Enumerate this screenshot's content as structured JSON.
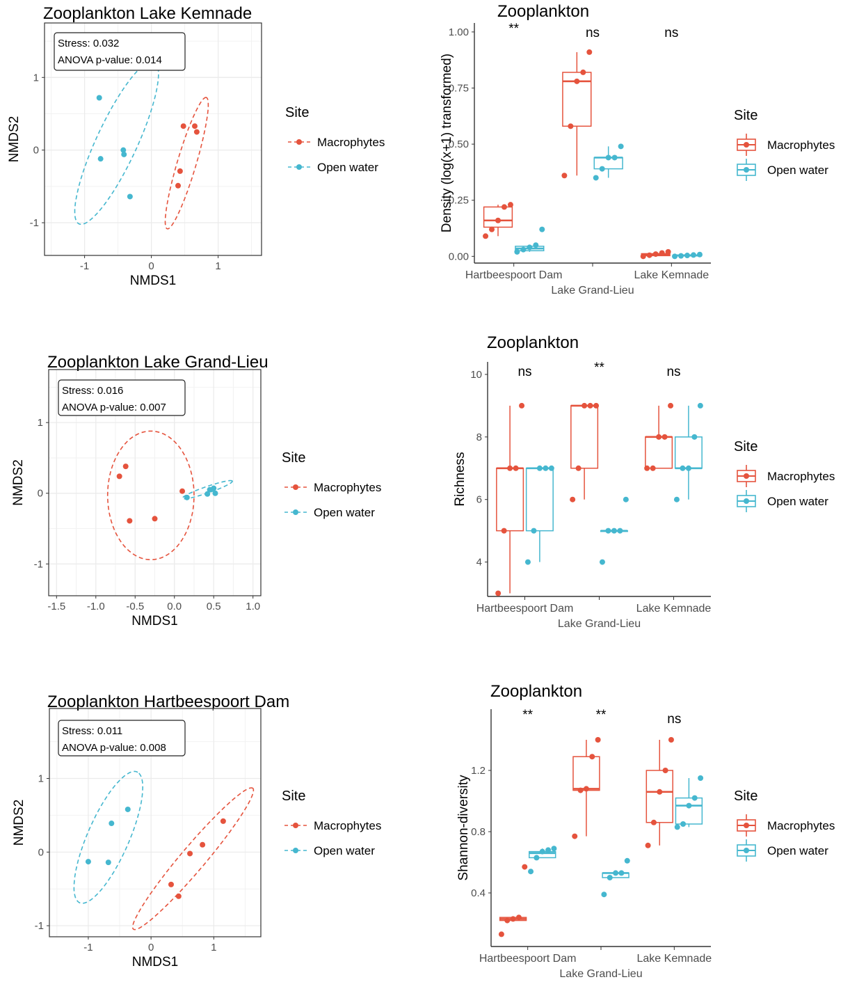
{
  "colors": {
    "macrophytes": "#e5533d",
    "open_water": "#45b7cf",
    "grid": "#ebebeb",
    "axis": "#333333"
  },
  "chart_data": [
    {
      "type": "scatter",
      "title": "Zooplankton Lake Kemnade",
      "xlabel": "NMDS1",
      "ylabel": "NMDS2",
      "xlim": [
        -1.6,
        1.65
      ],
      "ylim": [
        -1.45,
        1.75
      ],
      "xticks": [
        -1,
        0,
        1
      ],
      "yticks": [
        -1,
        0,
        1
      ],
      "stress_label": "Stress:  0.032",
      "anova_label": "ANOVA p-value: 0.014",
      "legend_title": "Site",
      "legend_position": "right",
      "series": [
        {
          "name": "Macrophytes",
          "points": [
            [
              0.48,
              0.33
            ],
            [
              0.65,
              0.33
            ],
            [
              0.68,
              0.25
            ],
            [
              0.43,
              -0.29
            ],
            [
              0.4,
              -0.49
            ]
          ],
          "ellipse": {
            "cx": 0.53,
            "cy": -0.18,
            "rx": 0.95,
            "ry": 0.14,
            "angle": 72
          }
        },
        {
          "name": "Open water",
          "points": [
            [
              -0.78,
              0.72
            ],
            [
              -0.76,
              -0.12
            ],
            [
              -0.42,
              0.0
            ],
            [
              -0.41,
              -0.06
            ],
            [
              -0.32,
              -0.64
            ]
          ],
          "ellipse": {
            "cx": -0.52,
            "cy": 0.1,
            "rx": 1.25,
            "ry": 0.3,
            "angle": 63
          }
        }
      ]
    },
    {
      "type": "box",
      "title": "Zooplankton",
      "xlabel": "Lake Grand-Lieu",
      "ylabel": "Density (log(x+1) transformed)",
      "ylim": [
        -0.03,
        1.04
      ],
      "yticks": [
        "0.00",
        "0.25",
        "0.50",
        "0.75",
        "1.00"
      ],
      "ytick_values": [
        0,
        0.25,
        0.5,
        0.75,
        1.0
      ],
      "categories": [
        "Hartbeespoort Dam",
        "Lake Grand-Lieu",
        "Lake Kemnade"
      ],
      "tick_labels_upper": [
        "Hartbeespoort Dam",
        "",
        "Lake Kemnade"
      ],
      "significance": [
        "**",
        "ns",
        "ns"
      ],
      "legend_title": "Site",
      "series": [
        {
          "name": "Macrophytes",
          "boxes": [
            [
              0.09,
              0.13,
              0.16,
              0.22,
              0.23
            ],
            [
              0.36,
              0.58,
              0.78,
              0.82,
              0.91
            ],
            [
              0.0,
              0.003,
              0.008,
              0.012,
              0.02
            ]
          ],
          "points": [
            [
              0.09,
              0.12,
              0.16,
              0.22,
              0.23
            ],
            [
              0.36,
              0.58,
              0.78,
              0.82,
              0.91
            ],
            [
              0.0,
              0.005,
              0.01,
              0.015,
              0.02
            ]
          ]
        },
        {
          "name": "Open water",
          "boxes": [
            [
              0.02,
              0.025,
              0.035,
              0.045,
              0.05
            ],
            [
              0.35,
              0.39,
              0.44,
              0.44,
              0.49
            ],
            [
              0.0,
              0.002,
              0.004,
              0.006,
              0.008
            ]
          ],
          "points": [
            [
              0.02,
              0.03,
              0.04,
              0.05,
              0.12
            ],
            [
              0.35,
              0.39,
              0.44,
              0.44,
              0.49
            ],
            [
              0.0,
              0.002,
              0.004,
              0.006,
              0.008
            ]
          ]
        }
      ]
    },
    {
      "type": "scatter",
      "title": "Zooplankton Lake Grand-Lieu",
      "xlabel": "NMDS1",
      "ylabel": "NMDS2",
      "xlim": [
        -1.6,
        1.1
      ],
      "ylim": [
        -1.45,
        1.75
      ],
      "xticks": [
        -1.5,
        -1.0,
        -0.5,
        0.0,
        0.5,
        1.0
      ],
      "xtick_labels": [
        "-1.5",
        "-1.0",
        "-0.5",
        "0.0",
        "0.5",
        "1.0"
      ],
      "yticks": [
        -1,
        0,
        1
      ],
      "stress_label": "Stress:  0.016",
      "anova_label": "ANOVA p-value: 0.007",
      "legend_title": "Site",
      "legend_position": "right",
      "series": [
        {
          "name": "Macrophytes",
          "points": [
            [
              -0.62,
              0.38
            ],
            [
              -0.7,
              0.24
            ],
            [
              -0.57,
              -0.39
            ],
            [
              -0.25,
              -0.36
            ],
            [
              0.1,
              0.03
            ]
          ],
          "ellipse": {
            "cx": -0.3,
            "cy": -0.03,
            "rx": 0.55,
            "ry": 0.91,
            "angle": 0
          }
        },
        {
          "name": "Open water",
          "points": [
            [
              0.16,
              -0.06
            ],
            [
              0.42,
              -0.01
            ],
            [
              0.45,
              0.05
            ],
            [
              0.5,
              0.07
            ],
            [
              0.52,
              0.0
            ]
          ],
          "ellipse": {
            "cx": 0.42,
            "cy": 0.05,
            "rx": 0.34,
            "ry": 0.045,
            "angle": 21
          }
        }
      ]
    },
    {
      "type": "box",
      "title": "Zooplankton",
      "xlabel": "Lake Grand-Lieu",
      "ylabel": "Richness",
      "ylim": [
        2.9,
        10.4
      ],
      "yticks": [
        "4",
        "6",
        "8",
        "10"
      ],
      "ytick_values": [
        4,
        6,
        8,
        10
      ],
      "categories": [
        "Hartbeespoort Dam",
        "Lake Grand-Lieu",
        "Lake Kemnade"
      ],
      "tick_labels_upper": [
        "Hartbeespoort Dam",
        "",
        "Lake Kemnade"
      ],
      "significance": [
        "ns",
        "**",
        "ns"
      ],
      "legend_title": "Site",
      "series": [
        {
          "name": "Macrophytes",
          "boxes": [
            [
              3,
              5,
              7,
              7,
              9
            ],
            [
              6,
              7,
              9,
              9,
              9
            ],
            [
              7,
              7,
              8,
              8,
              9
            ]
          ],
          "points": [
            [
              3,
              5,
              7,
              7,
              9
            ],
            [
              6,
              7,
              9,
              9,
              9
            ],
            [
              7,
              7,
              8,
              8,
              9
            ]
          ]
        },
        {
          "name": "Open water",
          "boxes": [
            [
              4,
              5,
              7,
              7,
              7
            ],
            [
              5,
              5,
              5,
              5,
              5
            ],
            [
              6,
              7,
              7,
              8,
              9
            ]
          ],
          "points": [
            [
              4,
              5,
              7,
              7,
              7
            ],
            [
              4,
              5,
              5,
              5,
              6
            ],
            [
              6,
              7,
              7,
              8,
              9
            ]
          ]
        }
      ]
    },
    {
      "type": "scatter",
      "title": "Zooplankton Hartbeespoort Dam",
      "xlabel": "NMDS1",
      "ylabel": "NMDS2",
      "xlim": [
        -1.62,
        1.75
      ],
      "ylim": [
        -1.15,
        1.95
      ],
      "xticks": [
        -1,
        0,
        1
      ],
      "yticks": [
        -1,
        0,
        1
      ],
      "stress_label": "Stress:  0.011",
      "anova_label": "ANOVA p-value: 0.008",
      "legend_title": "Site",
      "legend_position": "right",
      "series": [
        {
          "name": "Macrophytes",
          "points": [
            [
              1.15,
              0.42
            ],
            [
              0.82,
              0.1
            ],
            [
              0.62,
              -0.02
            ],
            [
              0.32,
              -0.44
            ],
            [
              0.44,
              -0.6
            ]
          ],
          "ellipse": {
            "cx": 0.67,
            "cy": -0.09,
            "rx": 1.35,
            "ry": 0.18,
            "angle": 45
          }
        },
        {
          "name": "Open water",
          "points": [
            [
              -0.37,
              0.58
            ],
            [
              -0.63,
              0.39
            ],
            [
              -0.68,
              -0.14
            ],
            [
              -1.0,
              -0.13
            ]
          ],
          "ellipse": {
            "cx": -0.68,
            "cy": 0.2,
            "rx": 1.0,
            "ry": 0.32,
            "angle": 62
          }
        }
      ]
    },
    {
      "type": "box",
      "title": "Zooplankton",
      "xlabel": "Lake Grand-Lieu",
      "ylabel": "Shannon-diversity",
      "ylim": [
        0.05,
        1.6
      ],
      "yticks": [
        "0.4",
        "0.8",
        "1.2"
      ],
      "ytick_values": [
        0.4,
        0.8,
        1.2
      ],
      "categories": [
        "Hartbeespoort Dam",
        "Lake Grand-Lieu",
        "Lake Kemnade"
      ],
      "tick_labels_upper": [
        "Hartbeespoort Dam",
        "",
        "Lake Kemnade"
      ],
      "significance": [
        "**",
        "**",
        "ns"
      ],
      "legend_title": "Site",
      "series": [
        {
          "name": "Macrophytes",
          "boxes": [
            [
              0.22,
              0.22,
              0.23,
              0.24,
              0.24
            ],
            [
              0.77,
              1.07,
              1.08,
              1.29,
              1.4
            ],
            [
              0.71,
              0.86,
              1.06,
              1.2,
              1.4
            ]
          ],
          "points": [
            [
              0.13,
              0.22,
              0.23,
              0.24,
              0.57
            ],
            [
              0.77,
              1.07,
              1.08,
              1.29,
              1.4
            ],
            [
              0.71,
              0.86,
              1.06,
              1.2,
              1.4
            ]
          ]
        },
        {
          "name": "Open water",
          "boxes": [
            [
              0.63,
              0.63,
              0.66,
              0.67,
              0.69
            ],
            [
              0.5,
              0.5,
              0.53,
              0.53,
              0.53
            ],
            [
              0.83,
              0.85,
              0.97,
              1.02,
              1.15
            ]
          ],
          "points": [
            [
              0.54,
              0.63,
              0.67,
              0.68,
              0.69
            ],
            [
              0.39,
              0.5,
              0.53,
              0.53,
              0.61
            ],
            [
              0.83,
              0.85,
              0.97,
              1.02,
              1.15
            ]
          ]
        }
      ]
    }
  ]
}
